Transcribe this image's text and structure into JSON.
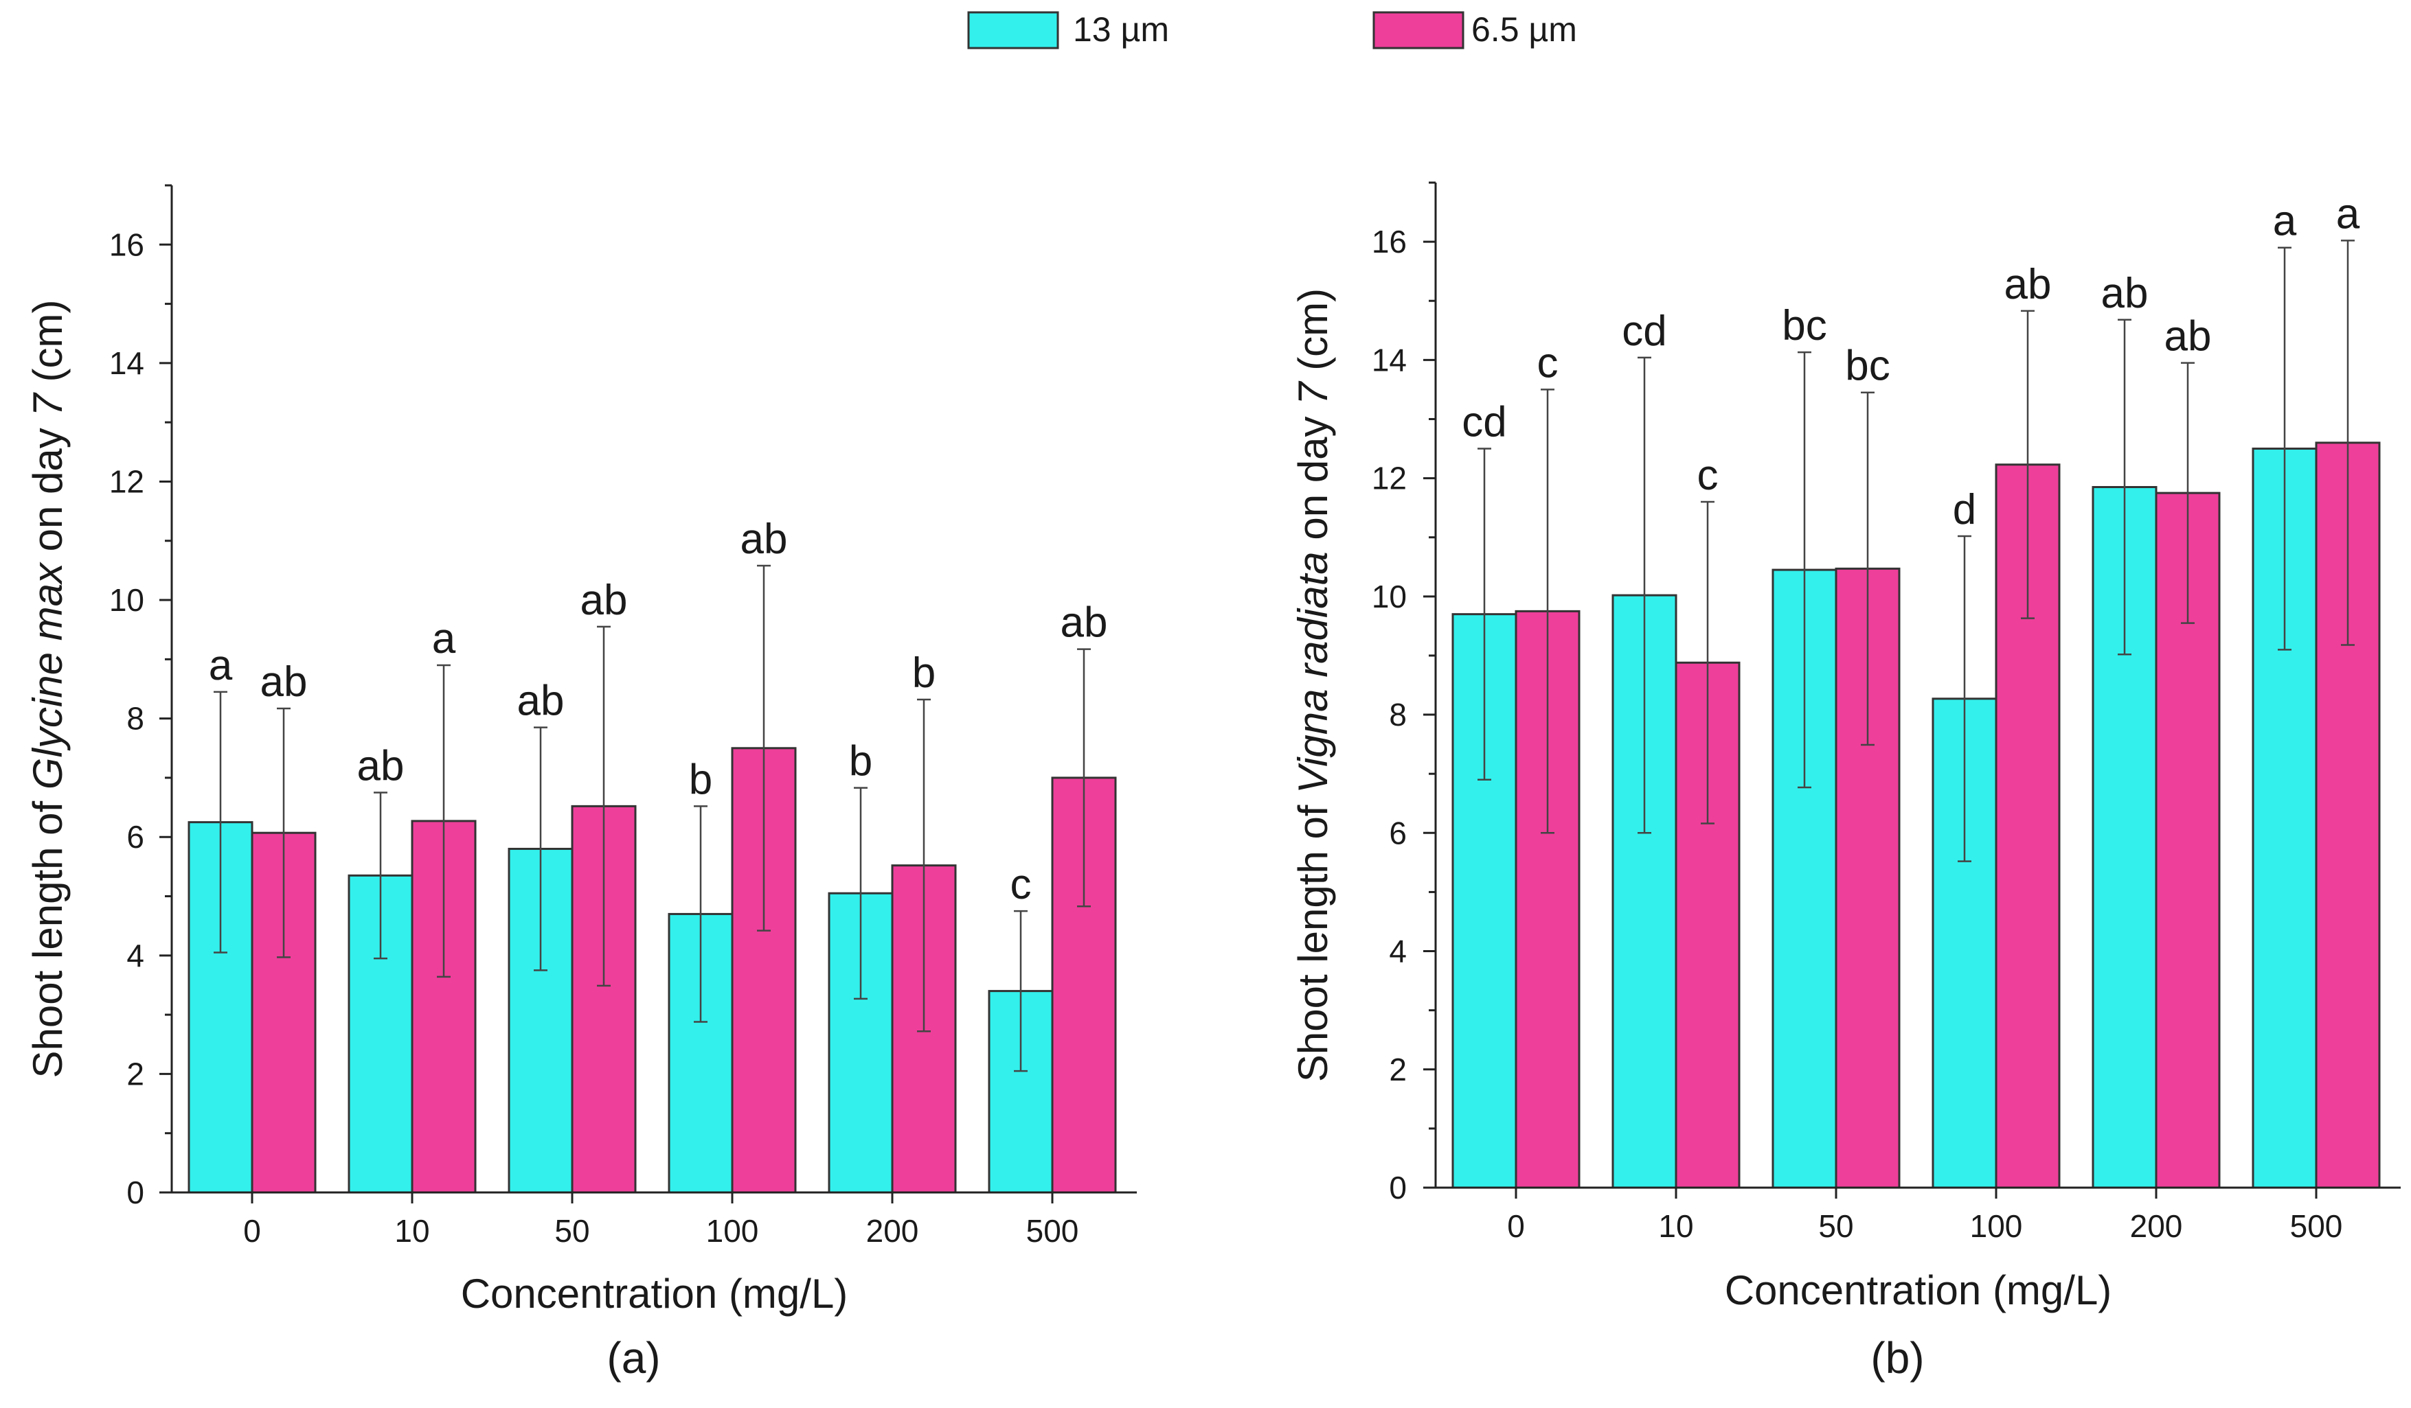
{
  "legend": [
    {
      "name": "13 µm",
      "color": "#33f0ec"
    },
    {
      "name": "6.5 µm",
      "color": "#ee3f9a"
    }
  ],
  "chart_data": [
    {
      "type": "bar",
      "panel_label": "(a)",
      "title": "",
      "categories": [
        "0",
        "10",
        "50",
        "100",
        "200",
        "500"
      ],
      "xlabel": "Concentration (mg/L)",
      "ylabel_parts": [
        {
          "text": "Shoot length of ",
          "italic": false
        },
        {
          "text": "Glycine max",
          "italic": true
        },
        {
          "text": " on day ",
          "italic": false
        },
        {
          "text": "7",
          "italic": true
        },
        {
          "text": " (cm)",
          "italic": false
        }
      ],
      "ylim": [
        0,
        17
      ],
      "yticks": [
        0,
        2,
        4,
        6,
        8,
        10,
        12,
        14,
        16
      ],
      "series": [
        {
          "name": "13 µm",
          "color": "#33f0ec",
          "values": [
            6.25,
            5.35,
            5.8,
            4.7,
            5.05,
            3.4
          ],
          "errors": [
            2.2,
            1.4,
            2.05,
            1.82,
            1.78,
            1.35
          ],
          "labels": [
            "a",
            "ab",
            "ab",
            "b",
            "b",
            "c"
          ]
        },
        {
          "name": "6.5 µm",
          "color": "#ee3f9a",
          "values": [
            6.07,
            6.27,
            6.52,
            7.5,
            5.52,
            7.0
          ],
          "errors": [
            2.1,
            2.63,
            3.03,
            3.08,
            2.8,
            2.17
          ],
          "labels": [
            "ab",
            "a",
            "ab",
            "ab",
            "b",
            "ab"
          ]
        }
      ]
    },
    {
      "type": "bar",
      "panel_label": "(b)",
      "title": "",
      "categories": [
        "0",
        "10",
        "50",
        "100",
        "200",
        "500"
      ],
      "xlabel": "Concentration (mg/L)",
      "ylabel_parts": [
        {
          "text": "Shoot length of ",
          "italic": false
        },
        {
          "text": "Vigna radiata",
          "italic": true
        },
        {
          "text": " on day ",
          "italic": false
        },
        {
          "text": "7",
          "italic": true
        },
        {
          "text": " (cm)",
          "italic": false
        }
      ],
      "ylim": [
        0,
        17
      ],
      "yticks": [
        0,
        2,
        4,
        6,
        8,
        10,
        12,
        14,
        16
      ],
      "series": [
        {
          "name": "13 µm",
          "color": "#33f0ec",
          "values": [
            9.7,
            10.02,
            10.45,
            8.27,
            11.85,
            12.5
          ],
          "errors": [
            2.8,
            4.02,
            3.68,
            2.75,
            2.83,
            3.4
          ],
          "labels": [
            "cd",
            "cd",
            "bc",
            "d",
            "ab",
            "a"
          ]
        },
        {
          "name": "6.5 µm",
          "color": "#ee3f9a",
          "values": [
            9.75,
            8.88,
            10.47,
            12.23,
            11.75,
            12.6
          ],
          "errors": [
            3.75,
            2.72,
            2.98,
            2.6,
            2.2,
            3.42
          ],
          "labels": [
            "c",
            "c",
            "bc",
            "ab",
            "ab",
            "a"
          ]
        }
      ]
    }
  ]
}
